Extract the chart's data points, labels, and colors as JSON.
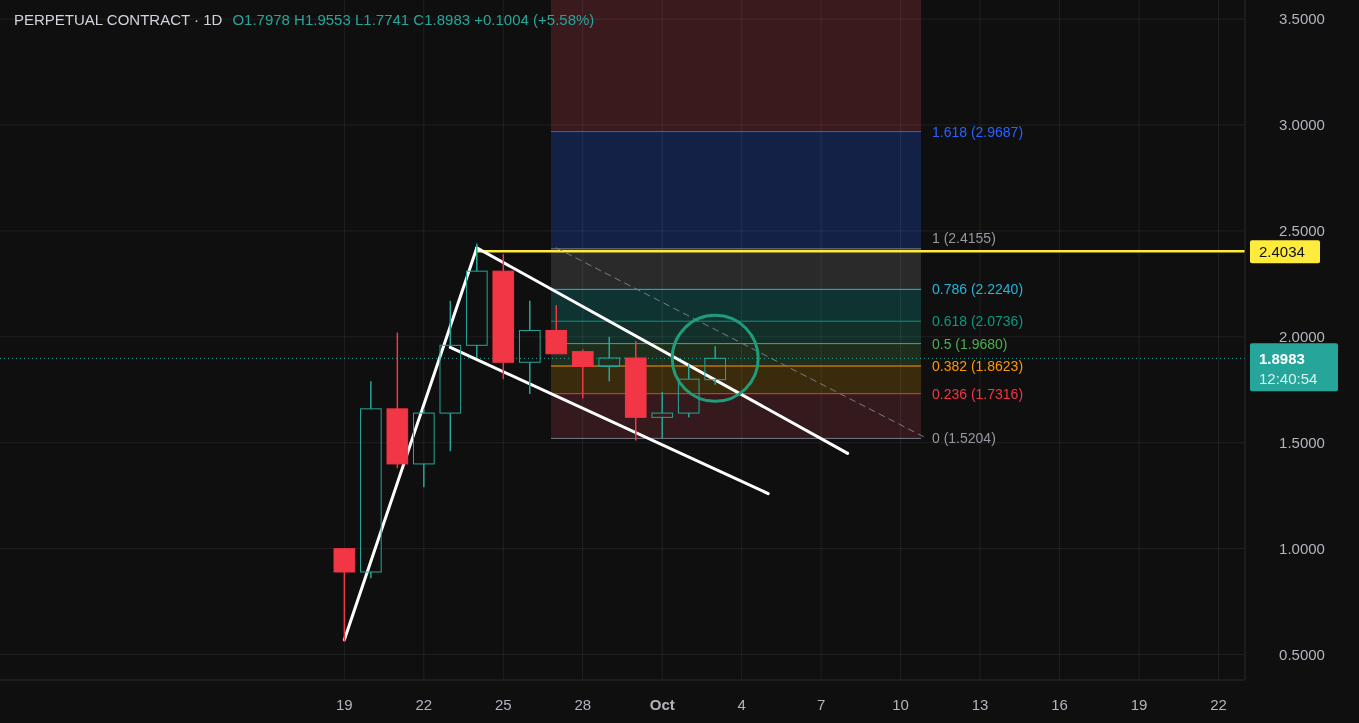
{
  "chart_data": {
    "type": "candlestick",
    "title": "PERPETUAL CONTRACT · 1D",
    "subtitle": "O1.7978 H1.9553 L1.7741 C1.8983 +0.1004 (+5.58%)",
    "x": [
      "--09-19",
      "--09-20",
      "--09-21",
      "--09-22",
      "--09-23",
      "--09-24",
      "--09-25",
      "--09-26",
      "--09-27",
      "--09-28",
      "--09-29",
      "--09-30",
      "--10-01",
      "--10-02",
      "--10-03"
    ],
    "ohlc": [
      [
        1.0,
        1.0,
        0.56,
        0.89
      ],
      [
        0.89,
        1.79,
        0.86,
        1.66
      ],
      [
        1.66,
        2.02,
        1.38,
        1.4
      ],
      [
        1.4,
        1.66,
        1.29,
        1.64
      ],
      [
        1.64,
        2.17,
        1.46,
        1.96
      ],
      [
        1.96,
        2.44,
        1.9,
        2.31
      ],
      [
        2.31,
        2.39,
        1.8,
        1.88
      ],
      [
        1.88,
        2.17,
        1.73,
        2.03
      ],
      [
        2.03,
        2.15,
        1.92,
        1.92
      ],
      [
        1.93,
        1.94,
        1.71,
        1.86
      ],
      [
        1.86,
        2.0,
        1.79,
        1.9
      ],
      [
        1.9,
        1.98,
        1.51,
        1.62
      ],
      [
        1.62,
        1.74,
        1.52,
        1.64
      ],
      [
        1.64,
        1.87,
        1.62,
        1.8
      ],
      [
        1.7978,
        1.9553,
        1.7741,
        1.8983
      ]
    ],
    "colors": [
      "#f23645",
      "#26a69a",
      "#f23645",
      "#26a69a",
      "#26a69a",
      "#26a69a",
      "#f23645",
      "#26a69a",
      "#f23645",
      "#f23645",
      "#26a69a",
      "#f23645",
      "#26a69a",
      "#26a69a",
      "#26a69a"
    ],
    "series": [
      {
        "type": "line",
        "x": [
          "--09-19",
          "--09-24"
        ],
        "values": [
          0.57,
          2.42
        ],
        "color": "#ffffff"
      },
      {
        "type": "line",
        "x": [
          "--09-24",
          "--10-08"
        ],
        "values": [
          2.42,
          1.45
        ],
        "color": "#ffffff"
      },
      {
        "type": "line",
        "x": [
          "--09-23",
          "--10-05"
        ],
        "values": [
          1.95,
          1.26
        ],
        "color": "#ffffff"
      },
      {
        "type": "line",
        "x": [
          "--09-27",
          "--10-11"
        ],
        "values": [
          2.42,
          1.52
        ],
        "color": "#787b86",
        "line_style": "dashed"
      }
    ],
    "bands": [
      {
        "axis": "y",
        "from": 1.5204,
        "to": 1.7316,
        "color": "#341a1d"
      },
      {
        "axis": "y",
        "from": 1.7316,
        "to": 1.8623,
        "color": "#3a2b0c"
      },
      {
        "axis": "y",
        "from": 1.8623,
        "to": 1.968,
        "color": "#1f2e1c"
      },
      {
        "axis": "y",
        "from": 1.968,
        "to": 2.0736,
        "color": "#123029"
      },
      {
        "axis": "y",
        "from": 2.0736,
        "to": 2.224,
        "color": "#0f3331"
      },
      {
        "axis": "y",
        "from": 2.224,
        "to": 2.4155,
        "color": "#2a2a2a"
      },
      {
        "axis": "y",
        "from": 2.4155,
        "to": 2.9687,
        "color": "#142147"
      },
      {
        "axis": "y",
        "from": 2.9687,
        "to": 3.59,
        "color": "#3a1a1c"
      }
    ],
    "ref_lines": [
      {
        "axis": "y",
        "value": 2.9687,
        "label": "1.618 (2.9687)",
        "color": "#2962ff"
      },
      {
        "axis": "y",
        "value": 2.4155,
        "label": "1 (2.4155)",
        "color": "#787b86"
      },
      {
        "axis": "y",
        "value": 2.224,
        "label": "0.786 (2.2240)",
        "color": "#22b5d9"
      },
      {
        "axis": "y",
        "value": 2.0736,
        "label": "0.618 (2.0736)",
        "color": "#089981"
      },
      {
        "axis": "y",
        "value": 1.968,
        "label": "0.5 (1.9680)",
        "color": "#4caf50"
      },
      {
        "axis": "y",
        "value": 1.8623,
        "label": "0.382 (1.8623)",
        "color": "#ff9800"
      },
      {
        "axis": "y",
        "value": 1.7316,
        "label": "0.236 (1.7316)",
        "color": "#f23645"
      },
      {
        "axis": "y",
        "value": 1.5204,
        "label": "0 (1.5204)",
        "color": "#787b86"
      },
      {
        "axis": "y",
        "value": 2.4034,
        "label": "2.4034",
        "color": "#ffeb3b"
      },
      {
        "axis": "y",
        "value": 1.8983,
        "label": "1.8983",
        "color": "#26a69a",
        "line_style": "dotted"
      }
    ],
    "annotations": [
      "12:40:54"
    ],
    "xlim": [
      "--09-06",
      "--10-23"
    ],
    "xticks": [
      {
        "value": "--09-19",
        "label": "19"
      },
      {
        "value": "--09-22",
        "label": "22"
      },
      {
        "value": "--09-25",
        "label": "25"
      },
      {
        "value": "--09-28",
        "label": "28"
      },
      {
        "value": "--10-01",
        "label": "Oct"
      },
      {
        "value": "--10-04",
        "label": "4"
      },
      {
        "value": "--10-07",
        "label": "7"
      },
      {
        "value": "--10-10",
        "label": "10"
      },
      {
        "value": "--10-13",
        "label": "13"
      },
      {
        "value": "--10-16",
        "label": "16"
      },
      {
        "value": "--10-19",
        "label": "19"
      },
      {
        "value": "--10-22",
        "label": "22"
      }
    ],
    "ylim": [
      0.38,
      3.59
    ],
    "yticks": [
      {
        "value": 0.5,
        "label": "0.5000"
      },
      {
        "value": 1,
        "label": "1.0000"
      },
      {
        "value": 1.5,
        "label": "1.5000"
      },
      {
        "value": 2,
        "label": "2.0000"
      },
      {
        "value": 2.5,
        "label": "2.5000"
      },
      {
        "value": 3,
        "label": "3.0000"
      },
      {
        "value": 3.5,
        "label": "3.5000"
      }
    ],
    "grid": true
  }
}
